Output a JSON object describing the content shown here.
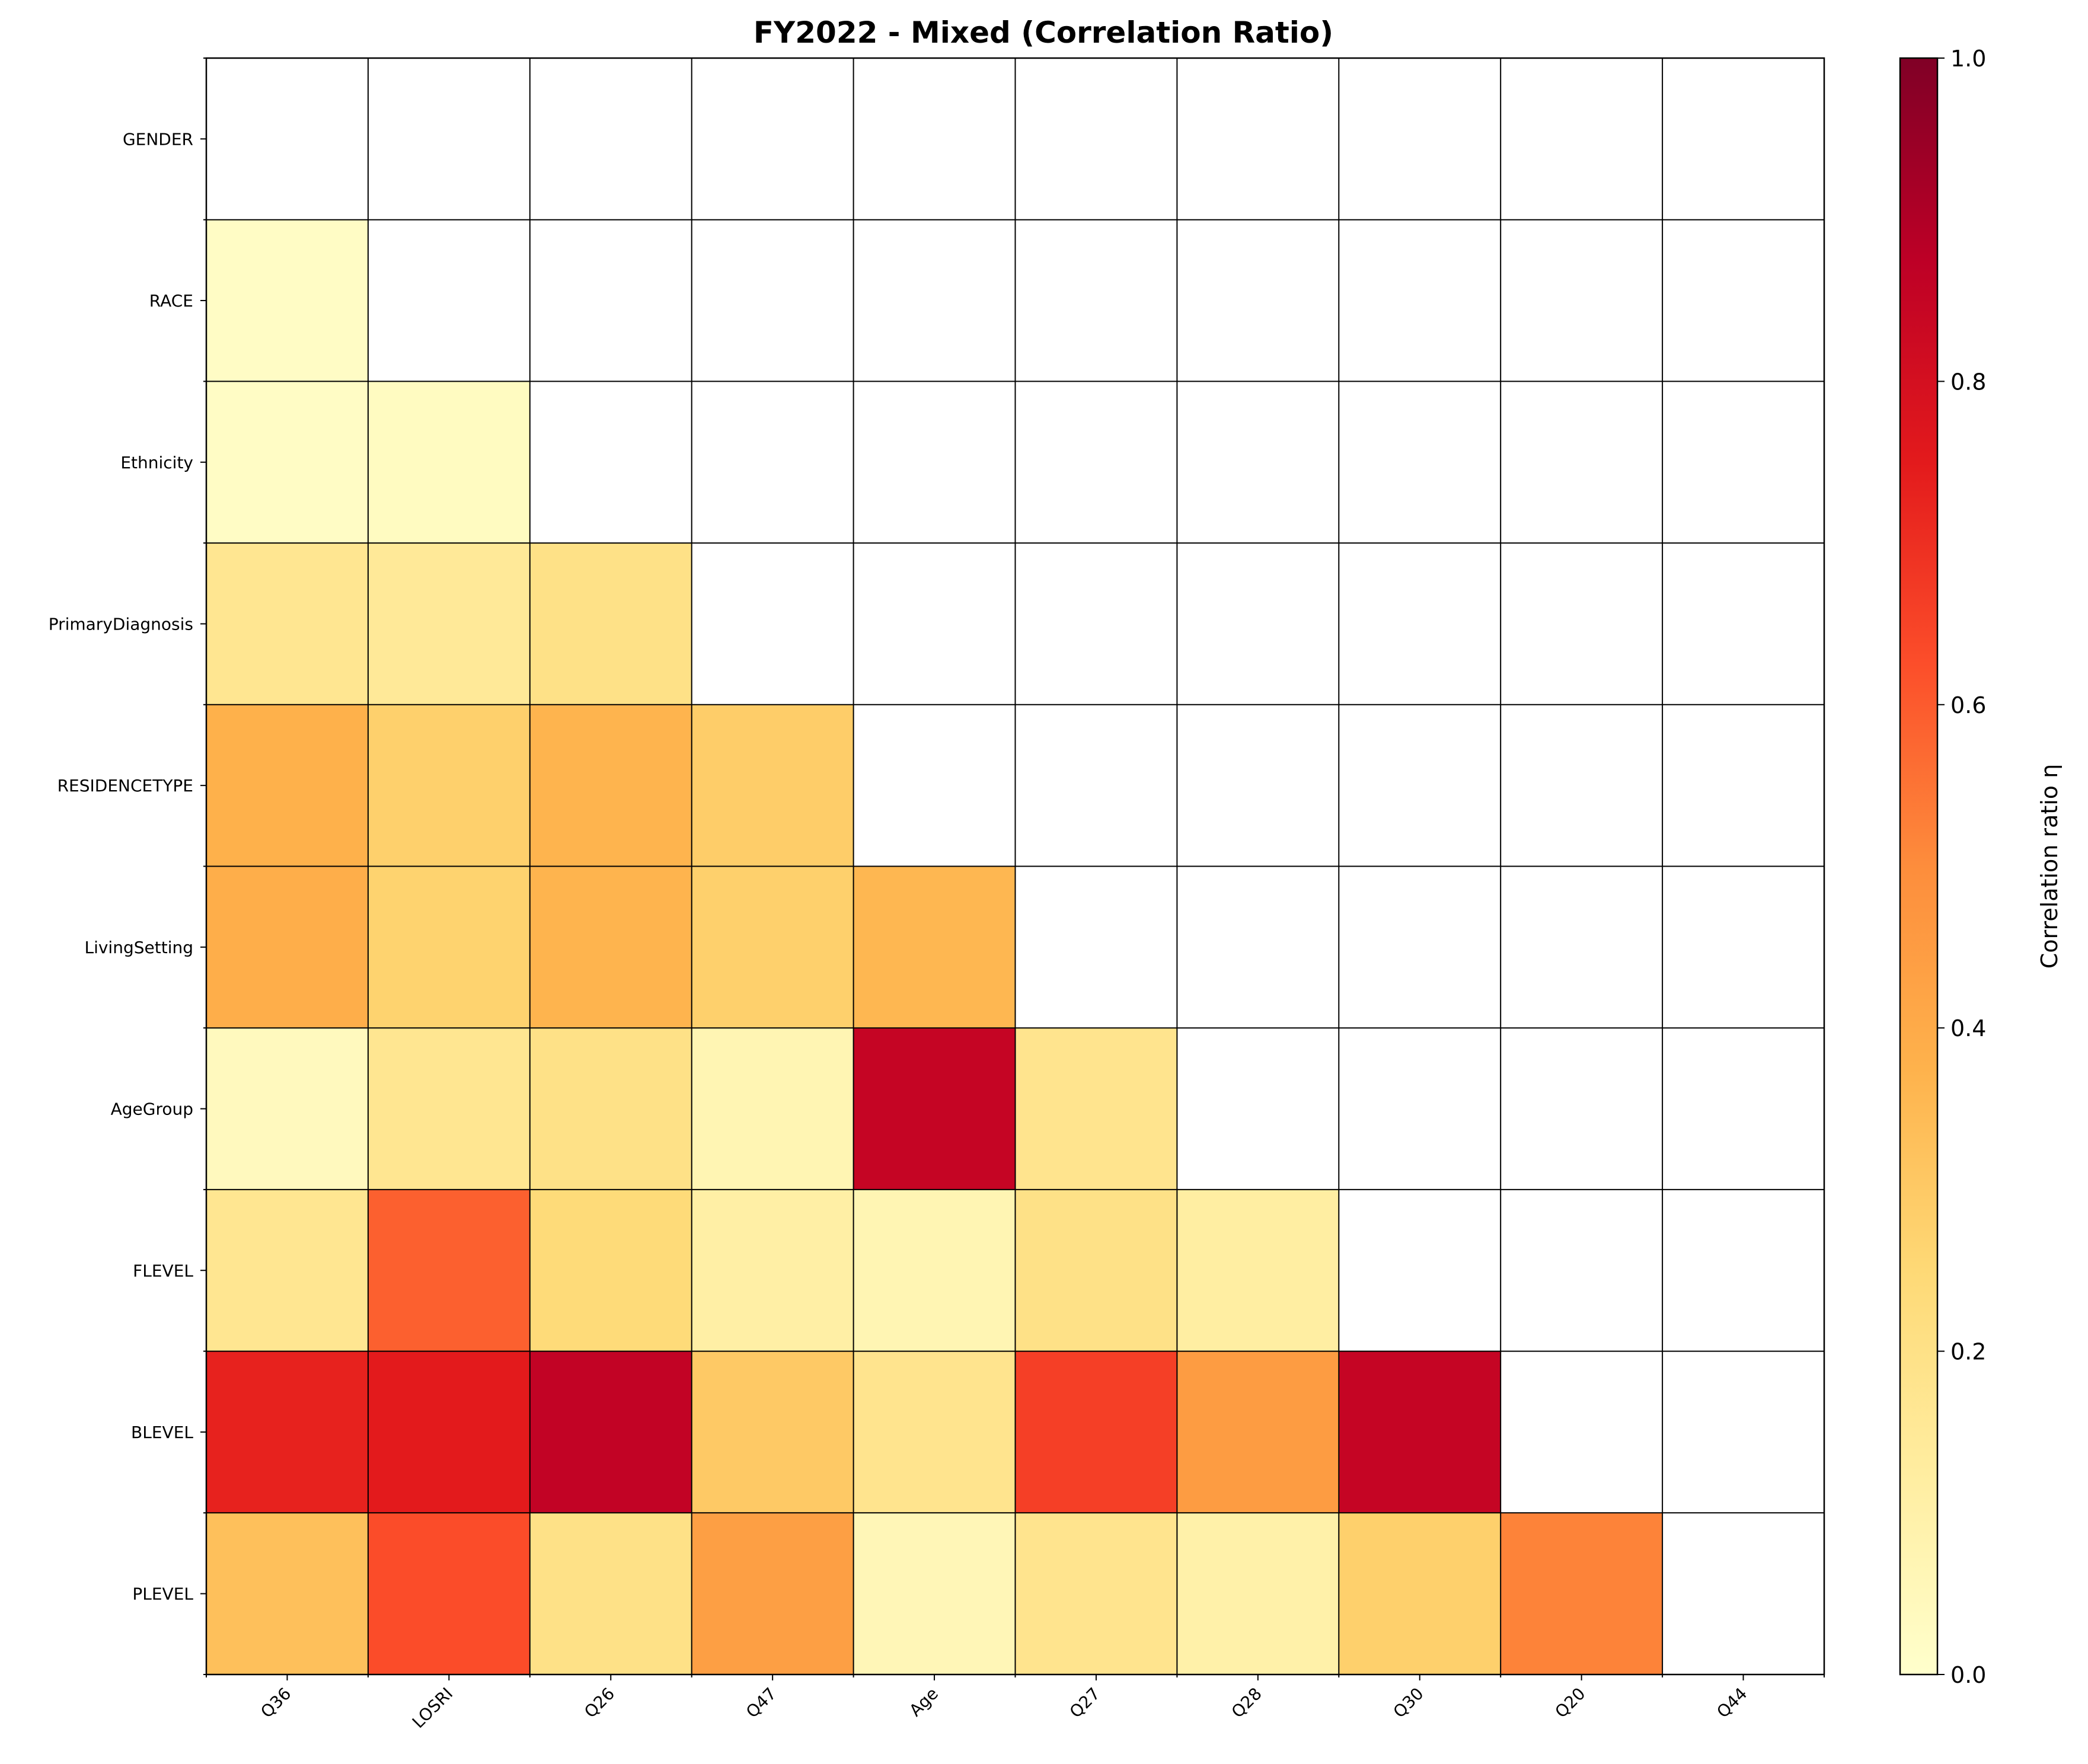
{
  "chart_data": {
    "type": "heatmap",
    "title": "FY2022  - Mixed (Correlation Ratio)",
    "x_labels": [
      "Q36",
      "LOSRI",
      "Q26",
      "Q47",
      "Age",
      "Q27",
      "Q28",
      "Q30",
      "Q20",
      "Q44"
    ],
    "y_labels": [
      "GENDER",
      "RACE",
      "Ethnicity",
      "PrimaryDiagnosis",
      "RESIDENCETYPE",
      "LivingSetting",
      "AgeGroup",
      "FLEVEL",
      "BLEVEL",
      "PLEVEL"
    ],
    "values": [
      [
        null,
        null,
        null,
        null,
        null,
        null,
        null,
        null,
        null,
        null
      ],
      [
        0.02,
        null,
        null,
        null,
        null,
        null,
        null,
        null,
        null,
        null
      ],
      [
        0.02,
        0.03,
        null,
        null,
        null,
        null,
        null,
        null,
        null,
        null
      ],
      [
        0.17,
        0.15,
        0.2,
        null,
        null,
        null,
        null,
        null,
        null,
        null
      ],
      [
        0.38,
        0.28,
        0.37,
        0.29,
        null,
        null,
        null,
        null,
        null,
        null
      ],
      [
        0.39,
        0.27,
        0.37,
        0.28,
        0.36,
        null,
        null,
        null,
        null,
        null
      ],
      [
        0.04,
        0.17,
        0.2,
        0.07,
        0.85,
        0.18,
        null,
        null,
        null,
        null
      ],
      [
        0.17,
        0.59,
        0.24,
        0.11,
        0.07,
        0.2,
        0.12,
        null,
        null,
        null
      ],
      [
        0.73,
        0.75,
        0.86,
        0.3,
        0.18,
        0.66,
        0.45,
        0.85,
        null,
        null
      ],
      [
        0.33,
        0.63,
        0.2,
        0.44,
        0.06,
        0.18,
        0.1,
        0.28,
        0.52,
        null
      ]
    ],
    "vmin": 0.0,
    "vmax": 1.0,
    "colormap": [
      "#ffffcc",
      "#ffeda0",
      "#fed976",
      "#feb24c",
      "#fd8d3c",
      "#fc4e2a",
      "#e31a1c",
      "#bd0026",
      "#800026"
    ],
    "colorbar": {
      "label": "Correlation ratio η",
      "ticks": [
        "0.0",
        "0.2",
        "0.4",
        "0.6",
        "0.8",
        "1.0"
      ],
      "tick_values": [
        0.0,
        0.2,
        0.4,
        0.6,
        0.8,
        1.0
      ]
    },
    "grid": true
  }
}
